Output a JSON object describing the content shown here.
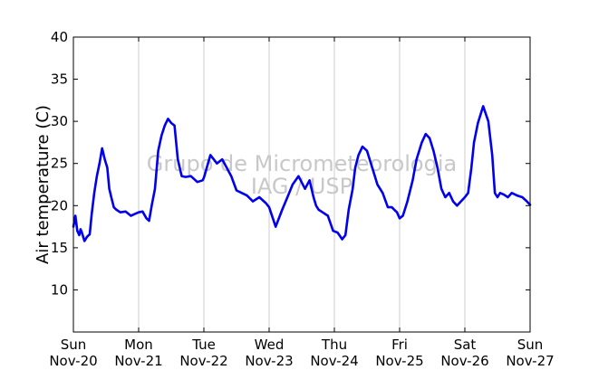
{
  "chart_data": {
    "type": "line",
    "ylabel": "Air temperature (C)",
    "xlabel": "",
    "title": "",
    "ylim": [
      5,
      40
    ],
    "xlim": [
      0,
      7
    ],
    "yticks": [
      10,
      15,
      20,
      25,
      30,
      35,
      40
    ],
    "xticks": [
      {
        "day": "Sun",
        "date": "Nov-20"
      },
      {
        "day": "Mon",
        "date": "Nov-21"
      },
      {
        "day": "Tue",
        "date": "Nov-22"
      },
      {
        "day": "Wed",
        "date": "Nov-23"
      },
      {
        "day": "Thu",
        "date": "Nov-24"
      },
      {
        "day": "Fri",
        "date": "Nov-25"
      },
      {
        "day": "Sat",
        "date": "Nov-26"
      },
      {
        "day": "Sun",
        "date": "Nov-27"
      }
    ],
    "grid": "vertical",
    "watermark": [
      "Grupo de Micrometeorologia",
      "IAG / USP"
    ],
    "series": [
      {
        "color": "#0000ee",
        "x": [
          0.0,
          0.03,
          0.06,
          0.09,
          0.11,
          0.13,
          0.17,
          0.21,
          0.25,
          0.28,
          0.32,
          0.36,
          0.4,
          0.44,
          0.48,
          0.52,
          0.55,
          0.58,
          0.62,
          0.66,
          0.72,
          0.8,
          0.88,
          0.94,
          1.0,
          1.06,
          1.12,
          1.16,
          1.2,
          1.25,
          1.3,
          1.35,
          1.4,
          1.45,
          1.5,
          1.55,
          1.6,
          1.66,
          1.72,
          1.8,
          1.9,
          1.98,
          2.0,
          2.1,
          2.2,
          2.28,
          2.35,
          2.42,
          2.5,
          2.58,
          2.66,
          2.75,
          2.85,
          2.95,
          3.0,
          3.1,
          3.2,
          3.28,
          3.36,
          3.45,
          3.55,
          3.62,
          3.68,
          3.72,
          3.76,
          3.82,
          3.9,
          3.98,
          4.05,
          4.12,
          4.17,
          4.22,
          4.28,
          4.32,
          4.37,
          4.43,
          4.5,
          4.58,
          4.66,
          4.74,
          4.82,
          4.88,
          4.92,
          4.96,
          5.0,
          5.05,
          5.12,
          5.2,
          5.26,
          5.34,
          5.4,
          5.46,
          5.52,
          5.58,
          5.64,
          5.7,
          5.76,
          5.82,
          5.88,
          5.94,
          6.0,
          6.05,
          6.1,
          6.14,
          6.2,
          6.28,
          6.36,
          6.42,
          6.46,
          6.5,
          6.54,
          6.6,
          6.66,
          6.72,
          6.8,
          6.88,
          6.95,
          7.0
        ],
        "y": [
          17.5,
          18.8,
          17.0,
          16.5,
          17.2,
          16.8,
          15.8,
          16.3,
          16.6,
          19.0,
          21.5,
          23.5,
          25.0,
          26.8,
          25.5,
          24.5,
          22.0,
          21.0,
          19.8,
          19.5,
          19.2,
          19.3,
          18.8,
          19.0,
          19.2,
          19.3,
          18.5,
          18.2,
          20.0,
          22.0,
          26.5,
          28.3,
          29.5,
          30.3,
          29.8,
          29.5,
          25.5,
          23.5,
          23.4,
          23.5,
          22.8,
          23.0,
          23.3,
          26.0,
          25.0,
          25.5,
          24.5,
          23.5,
          21.8,
          21.5,
          21.2,
          20.5,
          21.0,
          20.3,
          19.8,
          17.5,
          19.5,
          21.0,
          22.5,
          23.5,
          22.0,
          23.0,
          21.0,
          20.0,
          19.5,
          19.2,
          18.8,
          17.0,
          16.8,
          16.0,
          16.5,
          19.5,
          22.0,
          24.5,
          26.0,
          27.0,
          26.5,
          24.5,
          22.5,
          21.5,
          19.8,
          19.8,
          19.5,
          19.2,
          18.5,
          18.8,
          20.5,
          23.0,
          25.5,
          27.5,
          28.5,
          28.0,
          26.5,
          24.5,
          22.0,
          21.0,
          21.5,
          20.5,
          20.0,
          20.5,
          21.0,
          21.5,
          24.5,
          27.5,
          29.8,
          31.8,
          30.0,
          26.0,
          21.5,
          21.0,
          21.5,
          21.3,
          21.0,
          21.5,
          21.2,
          21.0,
          20.5,
          20.1
        ]
      }
    ]
  }
}
